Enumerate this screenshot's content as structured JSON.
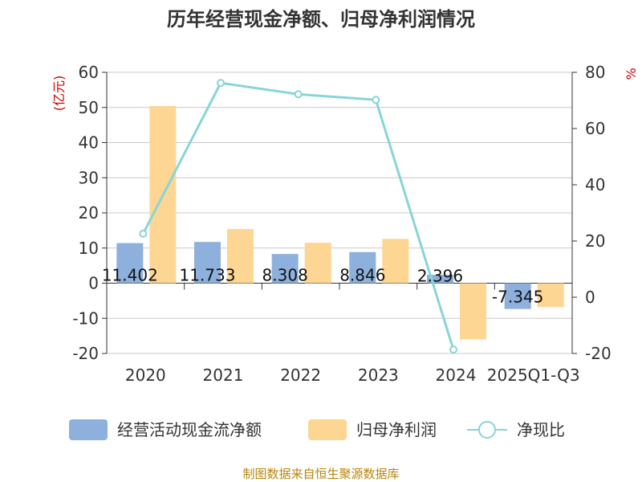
{
  "chart_data": {
    "type": "bar",
    "title": "历年经营现金净额、归母净利润情况",
    "categories": [
      "2020",
      "2021",
      "2022",
      "2023",
      "2024",
      "2025Q1-Q3"
    ],
    "series": [
      {
        "name": "经营活动现金流净额",
        "type": "bar",
        "axis": "left",
        "color": "#8eb0dc",
        "values": [
          11.402,
          11.733,
          8.308,
          8.846,
          2.396,
          -7.345
        ]
      },
      {
        "name": "归母净利润",
        "type": "bar",
        "axis": "left",
        "color": "#fdd694",
        "values": [
          50.4,
          15.4,
          11.5,
          12.6,
          -16.0,
          -6.8
        ]
      },
      {
        "name": "净现比",
        "type": "line",
        "axis": "right",
        "color": "#88d5d8",
        "values": [
          22.6,
          76.2,
          72.2,
          70.2,
          -18.6,
          null
        ]
      }
    ],
    "data_labels": [
      "11.402",
      "11.733",
      "8.308",
      "8.846",
      "2.396",
      "-7.345"
    ],
    "y_left": {
      "label": "(亿元)",
      "ylim": [
        -20,
        60
      ],
      "ticks": [
        "60",
        "50",
        "40",
        "30",
        "20",
        "10",
        "0",
        "-10",
        "-20"
      ]
    },
    "y_right": {
      "label": "%",
      "ylim": [
        -20,
        80
      ],
      "ticks": [
        "80",
        "60",
        "40",
        "20",
        "0",
        "-20"
      ]
    },
    "grid": true,
    "legend_position": "bottom"
  },
  "source": "制图数据来自恒生聚源数据库"
}
